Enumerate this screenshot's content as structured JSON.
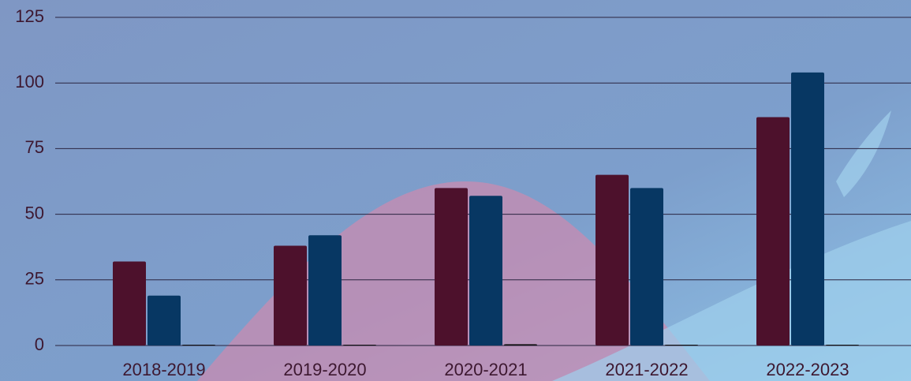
{
  "chart_data": {
    "type": "bar",
    "categories": [
      "2018-2019",
      "2019-2020",
      "2020-2021",
      "2021-2022",
      "2022-2023"
    ],
    "series": [
      {
        "color": "#4d112c",
        "values": [
          32,
          38,
          60,
          65,
          87
        ]
      },
      {
        "color": "#073763",
        "values": [
          19,
          42,
          57,
          60,
          104
        ]
      },
      {
        "color": "#111111",
        "values": [
          0,
          0,
          0.5,
          0,
          0
        ]
      }
    ],
    "ylim": [
      0,
      125
    ],
    "yticks": [
      0,
      25,
      50,
      75,
      100,
      125
    ],
    "grid": true
  }
}
